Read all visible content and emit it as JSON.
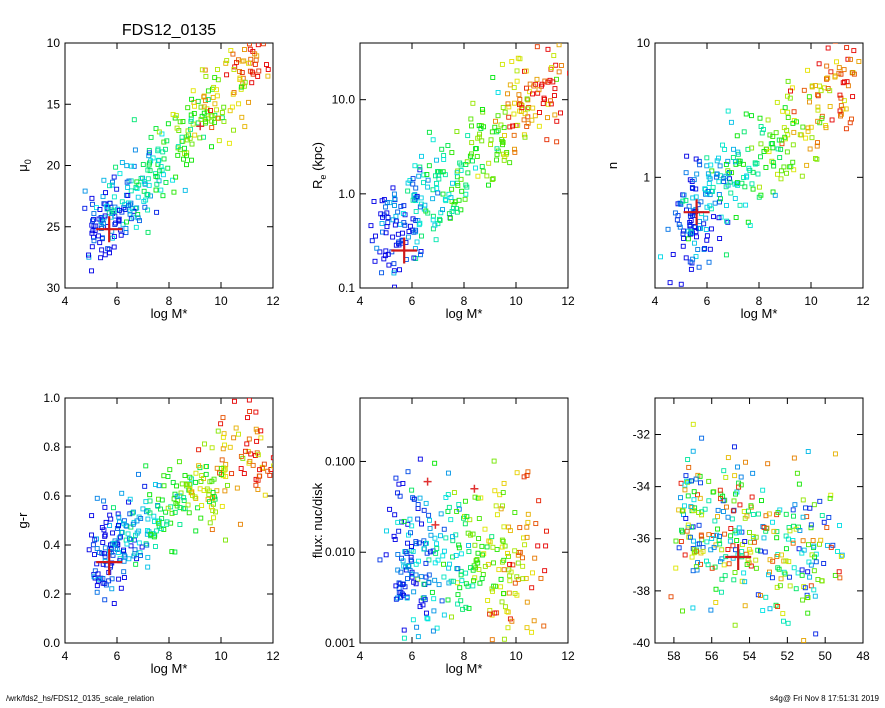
{
  "footer": {
    "path": "/wrk/fds2_hs/FDS12_0135_scale_relation",
    "stamp": "s4g@  Fri Nov  8 17:51:31 2019"
  },
  "chart_data": [
    {
      "type": "scatter",
      "title": "FDS12_0135",
      "xlabel": "log M*",
      "ylabel": "μ0",
      "xlim": [
        4,
        12
      ],
      "ylim": [
        30,
        10
      ],
      "xscale": "linear",
      "yscale": "linear",
      "xticks": [
        "4",
        "6",
        "8",
        "10",
        "12"
      ],
      "yticks": [
        "10",
        "15",
        "20",
        "25",
        "30"
      ],
      "marker": {
        "x": 5.7,
        "y": 25.2
      },
      "highlight": [
        {
          "x": 9.2,
          "y": 16.8
        }
      ],
      "trend": {
        "x0": 5.2,
        "y0": 25.5,
        "x1": 11.6,
        "y1": 10.5,
        "spread": 1.4
      },
      "grid": false
    },
    {
      "type": "scatter",
      "title": "",
      "xlabel": "log M*",
      "ylabel": "Re (kpc)",
      "xlim": [
        4,
        12
      ],
      "ylim": [
        0.1,
        40
      ],
      "xscale": "linear",
      "yscale": "log",
      "xticks": [
        "4",
        "6",
        "8",
        "10",
        "12"
      ],
      "yticks": [
        "0.1",
        "1.0",
        "10.0"
      ],
      "marker": {
        "x": 5.7,
        "y": 0.25
      },
      "highlight": [],
      "trend": {
        "x0": 5.0,
        "y0": 0.3,
        "x1": 11.6,
        "y1": 20,
        "spread": 0.25
      },
      "grid": false
    },
    {
      "type": "scatter",
      "title": "",
      "xlabel": "log M*",
      "ylabel": "n",
      "xlim": [
        4,
        12
      ],
      "ylim": [
        0.15,
        10
      ],
      "xscale": "linear",
      "yscale": "log",
      "xticks": [
        "4",
        "6",
        "8",
        "10",
        "12"
      ],
      "yticks": [
        "1",
        "10"
      ],
      "marker": {
        "x": 5.6,
        "y": 0.55
      },
      "highlight": [],
      "trend": {
        "x0": 5.0,
        "y0": 0.45,
        "x1": 11.6,
        "y1": 6,
        "spread": 0.18
      },
      "grid": false
    },
    {
      "type": "scatter",
      "title": "",
      "xlabel": "log M*",
      "ylabel": "g-r",
      "xlim": [
        4,
        12
      ],
      "ylim": [
        0.0,
        1.0
      ],
      "xscale": "linear",
      "yscale": "linear",
      "xticks": [
        "4",
        "6",
        "8",
        "10",
        "12"
      ],
      "yticks": [
        "0.0",
        "0.2",
        "0.4",
        "0.6",
        "0.8",
        "1.0"
      ],
      "marker": {
        "x": 5.7,
        "y": 0.33
      },
      "highlight": [],
      "trend": {
        "x0": 5.3,
        "y0": 0.35,
        "x1": 11.6,
        "y1": 0.8,
        "spread": 0.09
      },
      "grid": false
    },
    {
      "type": "scatter",
      "title": "",
      "xlabel": "log M*",
      "ylabel": "flux: nuc/disk",
      "xlim": [
        4,
        12
      ],
      "ylim": [
        0.001,
        0.5
      ],
      "xscale": "linear",
      "yscale": "log",
      "xticks": [
        "4",
        "6",
        "8",
        "10",
        "12"
      ],
      "yticks": [
        "0.001",
        "0.010",
        "0.100"
      ],
      "marker": null,
      "highlight": [
        {
          "x": 6.6,
          "y": 0.06
        },
        {
          "x": 8.4,
          "y": 0.05
        },
        {
          "x": 6.9,
          "y": 0.02
        }
      ],
      "trend": {
        "x0": 5.5,
        "y0": 0.01,
        "x1": 11.0,
        "y1": 0.006,
        "spread": 0.45
      },
      "grid": false
    },
    {
      "type": "scatter",
      "title": "",
      "xlabel": "",
      "ylabel": "",
      "xlim": [
        59,
        48
      ],
      "ylim": [
        -40,
        -30.6
      ],
      "xscale": "linear",
      "yscale": "linear",
      "xticks": [
        "58",
        "56",
        "54",
        "52",
        "50",
        "48"
      ],
      "yticks": [
        "-32",
        "-34",
        "-36",
        "-38",
        "-40"
      ],
      "marker": {
        "x": 54.6,
        "y": -36.7
      },
      "highlight": [],
      "trend": {
        "x0": 57.5,
        "y0": -35.5,
        "x1": 49.5,
        "y1": -36.5,
        "spread": 1.3
      },
      "grid": false
    }
  ]
}
